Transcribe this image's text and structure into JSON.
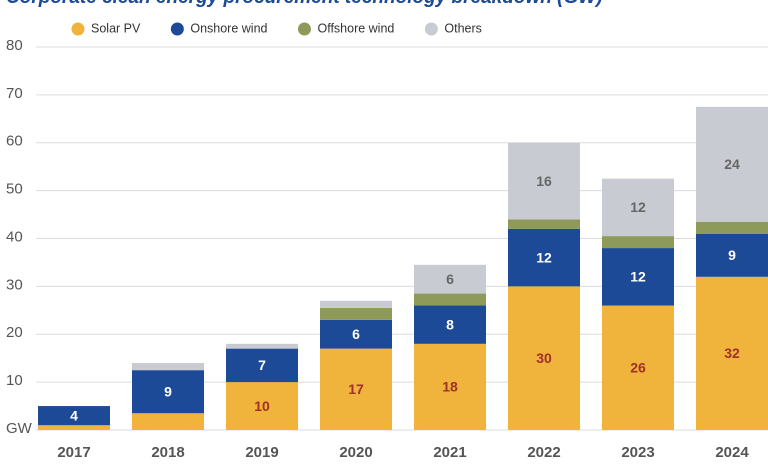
{
  "chart_data": {
    "type": "stacked-bar",
    "title": "Corporate clean energy procurement technology breakdown (GW)",
    "categories": [
      "2017",
      "2018",
      "2019",
      "2020",
      "2021",
      "2022",
      "2023",
      "2024"
    ],
    "series": [
      {
        "name": "Solar PV",
        "color": "#f0b33c",
        "label_color": "#a0302a",
        "values": [
          1,
          3.5,
          10,
          17,
          18,
          30,
          26,
          32
        ]
      },
      {
        "name": "Onshore wind",
        "color": "#1d4a97",
        "label_color": "#ffffff",
        "values": [
          4,
          9,
          7,
          6,
          8,
          12,
          12,
          9
        ]
      },
      {
        "name": "Offshore wind",
        "color": "#8e9a5a",
        "label_color": "#ffffff",
        "values": [
          0,
          0,
          0,
          2.5,
          2.5,
          2,
          2.5,
          2.5
        ]
      },
      {
        "name": "Others",
        "color": "#c8ccd2",
        "label_color": "#666666",
        "values": [
          0,
          1.5,
          1,
          1.5,
          6,
          16,
          12,
          24
        ]
      }
    ],
    "ylim": [
      0,
      80
    ],
    "yticks": [
      {
        "value": 0,
        "label": "GW"
      },
      10,
      20,
      30,
      40,
      50,
      60,
      70,
      80
    ],
    "grid": true
  }
}
